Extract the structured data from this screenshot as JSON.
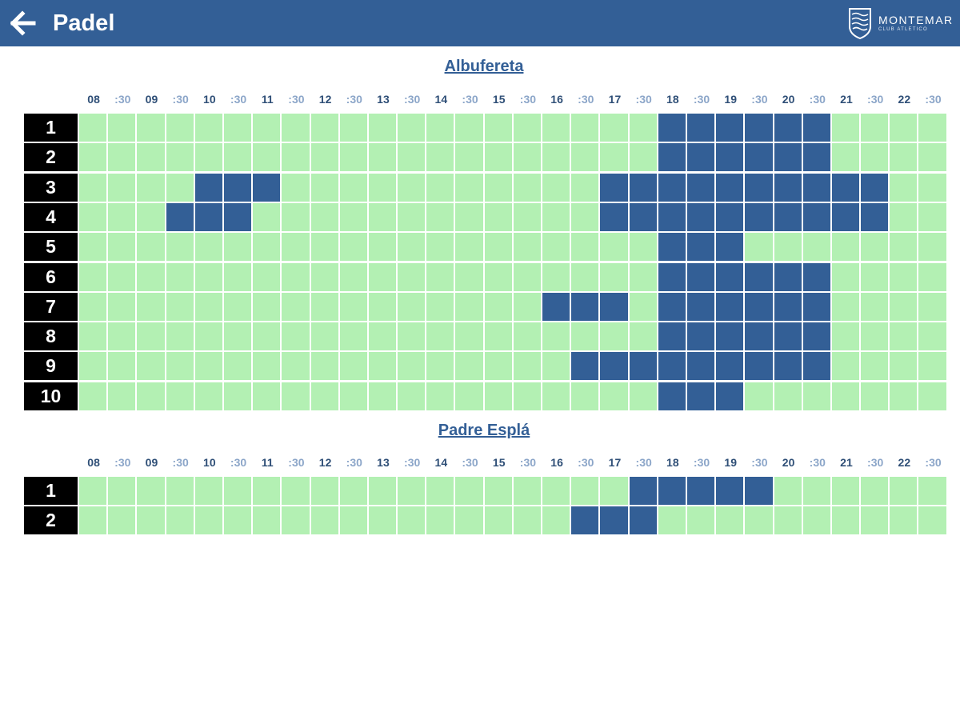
{
  "header": {
    "back_icon": "arrow-left-icon",
    "title": "Padel",
    "logo_name": "MONTEMAR",
    "logo_sub": "CLUB ATLETICO"
  },
  "colors": {
    "header_bg": "#335f96",
    "free": "#b3f0b3",
    "busy": "#335f96",
    "court_label_bg": "#000000"
  },
  "venues": [
    {
      "name": "Albufereta",
      "hours": [
        "08",
        ":30",
        "09",
        ":30",
        "10",
        ":30",
        "11",
        ":30",
        "12",
        ":30",
        "13",
        ":30",
        "14",
        ":30",
        "15",
        ":30",
        "16",
        ":30",
        "17",
        ":30",
        "18",
        ":30",
        "19",
        ":30",
        "20",
        ":30",
        "21",
        ":30",
        "22",
        ":30"
      ],
      "courts": [
        {
          "label": "1",
          "slots": [
            0,
            0,
            0,
            0,
            0,
            0,
            0,
            0,
            0,
            0,
            0,
            0,
            0,
            0,
            0,
            0,
            0,
            0,
            0,
            0,
            1,
            1,
            1,
            1,
            1,
            1,
            0,
            0,
            0,
            0
          ]
        },
        {
          "label": "2",
          "slots": [
            0,
            0,
            0,
            0,
            0,
            0,
            0,
            0,
            0,
            0,
            0,
            0,
            0,
            0,
            0,
            0,
            0,
            0,
            0,
            0,
            1,
            1,
            1,
            1,
            1,
            1,
            0,
            0,
            0,
            0
          ]
        },
        {
          "label": "3",
          "slots": [
            0,
            0,
            0,
            0,
            1,
            1,
            1,
            0,
            0,
            0,
            0,
            0,
            0,
            0,
            0,
            0,
            0,
            0,
            1,
            1,
            1,
            1,
            1,
            1,
            1,
            1,
            1,
            1,
            0,
            0
          ]
        },
        {
          "label": "4",
          "slots": [
            0,
            0,
            0,
            1,
            1,
            1,
            0,
            0,
            0,
            0,
            0,
            0,
            0,
            0,
            0,
            0,
            0,
            0,
            1,
            1,
            1,
            1,
            1,
            1,
            1,
            1,
            1,
            1,
            0,
            0
          ]
        },
        {
          "label": "5",
          "slots": [
            0,
            0,
            0,
            0,
            0,
            0,
            0,
            0,
            0,
            0,
            0,
            0,
            0,
            0,
            0,
            0,
            0,
            0,
            0,
            0,
            1,
            1,
            1,
            0,
            0,
            0,
            0,
            0,
            0,
            0
          ]
        },
        {
          "label": "6",
          "slots": [
            0,
            0,
            0,
            0,
            0,
            0,
            0,
            0,
            0,
            0,
            0,
            0,
            0,
            0,
            0,
            0,
            0,
            0,
            0,
            0,
            1,
            1,
            1,
            1,
            1,
            1,
            0,
            0,
            0,
            0
          ]
        },
        {
          "label": "7",
          "slots": [
            0,
            0,
            0,
            0,
            0,
            0,
            0,
            0,
            0,
            0,
            0,
            0,
            0,
            0,
            0,
            0,
            1,
            1,
            1,
            0,
            1,
            1,
            1,
            1,
            1,
            1,
            0,
            0,
            0,
            0
          ]
        },
        {
          "label": "8",
          "slots": [
            0,
            0,
            0,
            0,
            0,
            0,
            0,
            0,
            0,
            0,
            0,
            0,
            0,
            0,
            0,
            0,
            0,
            0,
            0,
            0,
            1,
            1,
            1,
            1,
            1,
            1,
            0,
            0,
            0,
            0
          ]
        },
        {
          "label": "9",
          "slots": [
            0,
            0,
            0,
            0,
            0,
            0,
            0,
            0,
            0,
            0,
            0,
            0,
            0,
            0,
            0,
            0,
            0,
            1,
            1,
            1,
            1,
            1,
            1,
            1,
            1,
            1,
            0,
            0,
            0,
            0
          ]
        },
        {
          "label": "10",
          "slots": [
            0,
            0,
            0,
            0,
            0,
            0,
            0,
            0,
            0,
            0,
            0,
            0,
            0,
            0,
            0,
            0,
            0,
            0,
            0,
            0,
            1,
            1,
            1,
            0,
            0,
            0,
            0,
            0,
            0,
            0
          ]
        }
      ]
    },
    {
      "name": "Padre Esplá",
      "hours": [
        "08",
        ":30",
        "09",
        ":30",
        "10",
        ":30",
        "11",
        ":30",
        "12",
        ":30",
        "13",
        ":30",
        "14",
        ":30",
        "15",
        ":30",
        "16",
        ":30",
        "17",
        ":30",
        "18",
        ":30",
        "19",
        ":30",
        "20",
        ":30",
        "21",
        ":30",
        "22",
        ":30"
      ],
      "courts": [
        {
          "label": "1",
          "slots": [
            0,
            0,
            0,
            0,
            0,
            0,
            0,
            0,
            0,
            0,
            0,
            0,
            0,
            0,
            0,
            0,
            0,
            0,
            0,
            1,
            1,
            1,
            1,
            1,
            0,
            0,
            0,
            0,
            0,
            0
          ]
        },
        {
          "label": "2",
          "slots": [
            0,
            0,
            0,
            0,
            0,
            0,
            0,
            0,
            0,
            0,
            0,
            0,
            0,
            0,
            0,
            0,
            0,
            1,
            1,
            1,
            0,
            0,
            0,
            0,
            0,
            0,
            0,
            0,
            0,
            0
          ]
        }
      ]
    }
  ]
}
